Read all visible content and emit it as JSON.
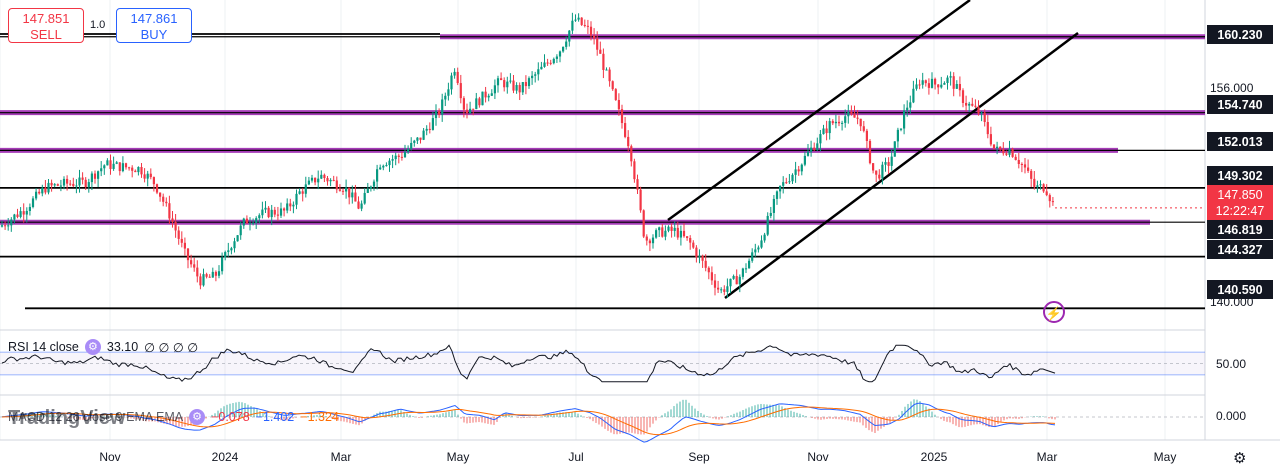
{
  "trade": {
    "sell_price": "147.851",
    "sell_label": "SELL",
    "buy_price": "147.861",
    "buy_label": "BUY",
    "spread": "1.0"
  },
  "price_labels": {
    "l160": "160.230",
    "l156": "156.000",
    "l154": "154.740",
    "l152": "152.013",
    "l149": "149.302",
    "current_price": "147.850",
    "countdown": "12:22:47",
    "l146": "146.819",
    "l144": "144.327",
    "l140": "140.590",
    "l140b": "140.000"
  },
  "rsi": {
    "label": "RSI 14 close",
    "value": "33.10",
    "extra": "∅ ∅ ∅ ∅",
    "axis_label": "50.00"
  },
  "macd": {
    "label": "MACD 12 26 close 9 EMA EMA",
    "v1": "−0.078",
    "v2": "−1.402",
    "v3": "−1.324",
    "axis_label": "0.000"
  },
  "logo": "TradingView",
  "x_axis": [
    "Nov",
    "2024",
    "Mar",
    "May",
    "Jul",
    "Sep",
    "Nov",
    "2025",
    "Mar",
    "May"
  ],
  "colors": {
    "up": "#089981",
    "down": "#f23645",
    "level_purple": "#9c27b0",
    "rsi_line": "#131722",
    "macd_line": "#2962ff",
    "signal_line": "#ff6d00"
  },
  "chart_data": {
    "type": "candlestick",
    "ylim": [
      139.6,
      162.6
    ],
    "horizontal_levels": [
      160.23,
      154.74,
      152.013,
      149.302,
      146.819,
      144.327,
      140.59
    ],
    "purple_levels": [
      160.23,
      154.74,
      152.013,
      146.819
    ],
    "close_path": [
      [
        0,
        146.5
      ],
      [
        25,
        147.8
      ],
      [
        45,
        149.3
      ],
      [
        65,
        149.6
      ],
      [
        85,
        149.7
      ],
      [
        105,
        151.0
      ],
      [
        125,
        150.8
      ],
      [
        140,
        150.7
      ],
      [
        155,
        149.6
      ],
      [
        170,
        147.3
      ],
      [
        185,
        144.5
      ],
      [
        200,
        142.6
      ],
      [
        215,
        142.9
      ],
      [
        230,
        145.1
      ],
      [
        245,
        146.9
      ],
      [
        265,
        147.5
      ],
      [
        285,
        147.6
      ],
      [
        300,
        149.0
      ],
      [
        320,
        150.2
      ],
      [
        345,
        149.3
      ],
      [
        360,
        147.8
      ],
      [
        380,
        151.1
      ],
      [
        400,
        151.6
      ],
      [
        420,
        152.9
      ],
      [
        440,
        154.9
      ],
      [
        455,
        158.1
      ],
      [
        465,
        154.8
      ],
      [
        480,
        155.7
      ],
      [
        500,
        157.0
      ],
      [
        520,
        156.4
      ],
      [
        540,
        157.8
      ],
      [
        560,
        159.3
      ],
      [
        575,
        161.5
      ],
      [
        590,
        160.6
      ],
      [
        600,
        158.9
      ],
      [
        615,
        155.6
      ],
      [
        630,
        152.2
      ],
      [
        645,
        145.5
      ],
      [
        660,
        146.1
      ],
      [
        675,
        146.2
      ],
      [
        690,
        145.3
      ],
      [
        705,
        143.6
      ],
      [
        720,
        141.8
      ],
      [
        740,
        142.9
      ],
      [
        760,
        145.4
      ],
      [
        780,
        149.3
      ],
      [
        800,
        151.0
      ],
      [
        815,
        152.5
      ],
      [
        830,
        153.9
      ],
      [
        845,
        154.5
      ],
      [
        860,
        154.3
      ],
      [
        875,
        150.0
      ],
      [
        890,
        151.2
      ],
      [
        905,
        154.9
      ],
      [
        920,
        157.1
      ],
      [
        935,
        156.8
      ],
      [
        950,
        157.2
      ],
      [
        965,
        155.5
      ],
      [
        980,
        154.7
      ],
      [
        995,
        152.0
      ],
      [
        1010,
        152.1
      ],
      [
        1025,
        150.7
      ],
      [
        1035,
        149.3
      ],
      [
        1045,
        149.4
      ],
      [
        1055,
        147.85
      ]
    ],
    "rsi_range": [
      0,
      100
    ],
    "rsi_value": 33.1,
    "macd_values": {
      "macd": -1.402,
      "signal": -1.324,
      "histogram": -0.078
    },
    "x_tick_labels": [
      "Nov",
      "2024",
      "Mar",
      "May",
      "Jul",
      "Sep",
      "Nov",
      "2025",
      "Mar",
      "May"
    ]
  }
}
